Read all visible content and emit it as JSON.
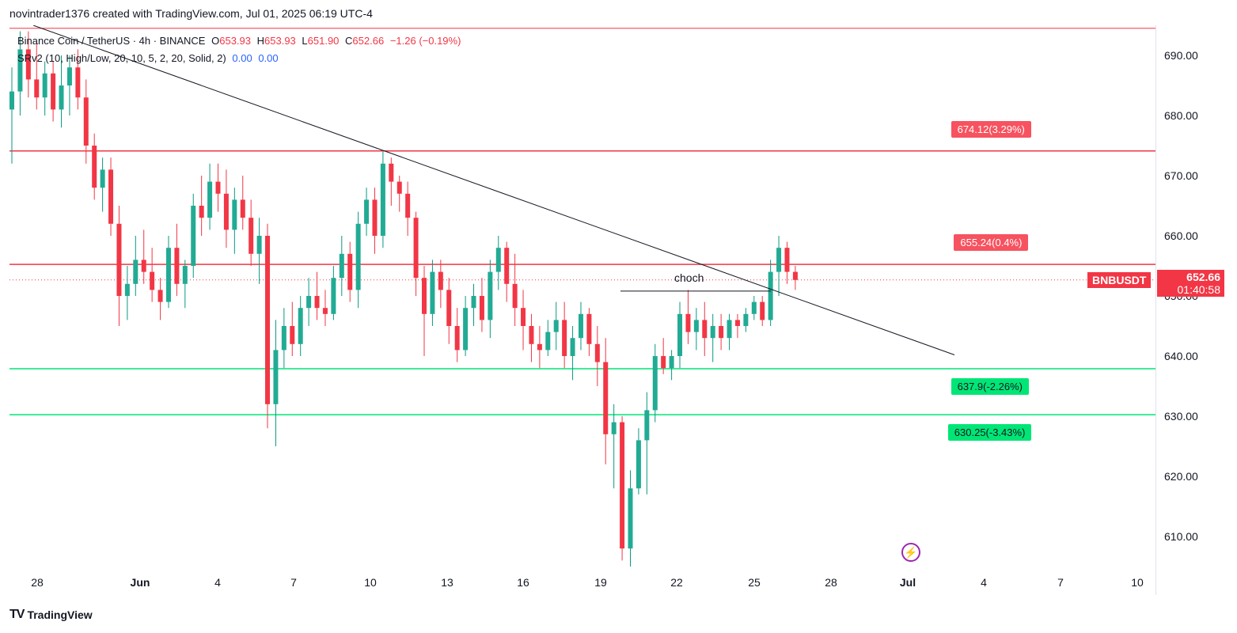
{
  "header": {
    "created_by": "novintrader1376 created with TradingView.com, Jul 01, 2025 06:19 UTC-4"
  },
  "legend": {
    "symbol_line": "Binance Coin / TetherUS · 4h · BINANCE",
    "o_label": "O",
    "o_val": "653.93",
    "h_label": "H",
    "h_val": "653.93",
    "l_label": "L",
    "l_val": "651.90",
    "c_label": "C",
    "c_val": "652.66",
    "change": "−1.26 (−0.19%)",
    "indicator": "SRv2 (10, High/Low, 20, 10, 5, 2, 20, Solid, 2)",
    "ind_v1": "0.00",
    "ind_v2": "0.00"
  },
  "levels": [
    {
      "label": "674.12(3.29%)",
      "price": 674.12,
      "color": "#f23645",
      "box_color": "#f7525f"
    },
    {
      "label": "655.24(0.4%)",
      "price": 655.24,
      "color": "#f23645",
      "box_color": "#f7525f"
    },
    {
      "label": "637.9(-2.26%)",
      "price": 637.9,
      "color": "#00e676",
      "box_color": "#00e676"
    },
    {
      "label": "630.25(-3.43%)",
      "price": 630.25,
      "color": "#00e676",
      "box_color": "#00e676"
    }
  ],
  "top_line_price": 694.5,
  "current": {
    "symbol": "BNBUSDT",
    "price": "652.66",
    "countdown": "01:40:58",
    "color": "#f23645"
  },
  "annotation": {
    "text": "choch",
    "price": 650.8
  },
  "trendline": {
    "from_date": "May 27",
    "from_price": 695,
    "to_date": "Jul 3",
    "to_price": 640.2
  },
  "y_ticks": [
    "690.00",
    "680.00",
    "670.00",
    "660.00",
    "650.00",
    "640.00",
    "630.00",
    "620.00",
    "610.00"
  ],
  "x_ticks": [
    "28",
    "Jun",
    "4",
    "7",
    "10",
    "13",
    "16",
    "19",
    "22",
    "25",
    "28",
    "Jul",
    "4",
    "7",
    "10"
  ],
  "footer": {
    "brand": "TradingView"
  },
  "colors": {
    "up": "#089981",
    "down": "#f23645",
    "up_fill": "#22ab94"
  },
  "chart_data": {
    "type": "candlestick",
    "title": "Binance Coin / TetherUS · 4h · BINANCE",
    "ylim": [
      604,
      696
    ],
    "series": [
      {
        "name": "BNBUSDT",
        "ohlc": [
          [
            681,
            688,
            672,
            684
          ],
          [
            684,
            694,
            680,
            691
          ],
          [
            691,
            694,
            683,
            686
          ],
          [
            686,
            692,
            681,
            683
          ],
          [
            683,
            689,
            680,
            687
          ],
          [
            687,
            689,
            679,
            681
          ],
          [
            681,
            690,
            678,
            685
          ],
          [
            685,
            690,
            680,
            688
          ],
          [
            688,
            691,
            681,
            683
          ],
          [
            683,
            686,
            672,
            675
          ],
          [
            675,
            677,
            666,
            668
          ],
          [
            668,
            673,
            664,
            671
          ],
          [
            671,
            673,
            660,
            662
          ],
          [
            662,
            665,
            645,
            650
          ],
          [
            650,
            655,
            646,
            652
          ],
          [
            652,
            660,
            650,
            656
          ],
          [
            656,
            661,
            652,
            654
          ],
          [
            654,
            658,
            649,
            651
          ],
          [
            651,
            653,
            646,
            649
          ],
          [
            649,
            660,
            648,
            658
          ],
          [
            658,
            662,
            650,
            652
          ],
          [
            652,
            656,
            648,
            655
          ],
          [
            655,
            667,
            653,
            665
          ],
          [
            665,
            670,
            660,
            663
          ],
          [
            663,
            672,
            661,
            669
          ],
          [
            669,
            672,
            664,
            667
          ],
          [
            667,
            671,
            658,
            661
          ],
          [
            661,
            668,
            657,
            666
          ],
          [
            666,
            670,
            661,
            663
          ],
          [
            663,
            666,
            655,
            657
          ],
          [
            657,
            663,
            652,
            660
          ],
          [
            660,
            662,
            628,
            632
          ],
          [
            632,
            646,
            625,
            641
          ],
          [
            641,
            648,
            638,
            645
          ],
          [
            645,
            649,
            640,
            642
          ],
          [
            642,
            650,
            640,
            648
          ],
          [
            648,
            653,
            645,
            650
          ],
          [
            650,
            654,
            646,
            648
          ],
          [
            648,
            651,
            645,
            647
          ],
          [
            647,
            655,
            646,
            653
          ],
          [
            653,
            660,
            650,
            657
          ],
          [
            657,
            659,
            649,
            651
          ],
          [
            651,
            664,
            648,
            662
          ],
          [
            662,
            668,
            660,
            666
          ],
          [
            666,
            668,
            657,
            660
          ],
          [
            660,
            674,
            658,
            672
          ],
          [
            672,
            673,
            665,
            669
          ],
          [
            669,
            670,
            664,
            667
          ],
          [
            667,
            669,
            660,
            663
          ],
          [
            663,
            664,
            650,
            653
          ],
          [
            653,
            655,
            640,
            647
          ],
          [
            647,
            656,
            645,
            654
          ],
          [
            654,
            656,
            648,
            651
          ],
          [
            651,
            653,
            642,
            645
          ],
          [
            645,
            648,
            639,
            641
          ],
          [
            641,
            650,
            640,
            648
          ],
          [
            648,
            652,
            645,
            650
          ],
          [
            650,
            653,
            644,
            646
          ],
          [
            646,
            656,
            643,
            654
          ],
          [
            654,
            660,
            651,
            658
          ],
          [
            658,
            659,
            649,
            652
          ],
          [
            652,
            657,
            645,
            648
          ],
          [
            648,
            651,
            641,
            645
          ],
          [
            645,
            647,
            639,
            642
          ],
          [
            642,
            645,
            638,
            641
          ],
          [
            641,
            646,
            640,
            644
          ],
          [
            644,
            649,
            641,
            646
          ],
          [
            646,
            649,
            638,
            640
          ],
          [
            640,
            645,
            636,
            643
          ],
          [
            643,
            649,
            641,
            647
          ],
          [
            647,
            648,
            640,
            642
          ],
          [
            642,
            645,
            635,
            639
          ],
          [
            639,
            643,
            622,
            627
          ],
          [
            627,
            632,
            618,
            629
          ],
          [
            629,
            630,
            606,
            608
          ],
          [
            608,
            621,
            605,
            618
          ],
          [
            618,
            628,
            617,
            626
          ],
          [
            626,
            634,
            617,
            631
          ],
          [
            631,
            642,
            629,
            640
          ],
          [
            640,
            643,
            637,
            638
          ],
          [
            638,
            641,
            636,
            640
          ],
          [
            640,
            649,
            638,
            647
          ],
          [
            647,
            651,
            642,
            644
          ],
          [
            644,
            648,
            641,
            646
          ],
          [
            646,
            649,
            640,
            643
          ],
          [
            643,
            647,
            639,
            645
          ],
          [
            645,
            647,
            641,
            643
          ],
          [
            643,
            647,
            641,
            646
          ],
          [
            646,
            647,
            643,
            645
          ],
          [
            645,
            648,
            644,
            647
          ],
          [
            647,
            650,
            646,
            649
          ],
          [
            649,
            650,
            645,
            646
          ],
          [
            646,
            656,
            645,
            654
          ],
          [
            654,
            660,
            650,
            658
          ],
          [
            658,
            659,
            652,
            654
          ],
          [
            654,
            655,
            651,
            652.66
          ]
        ]
      }
    ]
  }
}
